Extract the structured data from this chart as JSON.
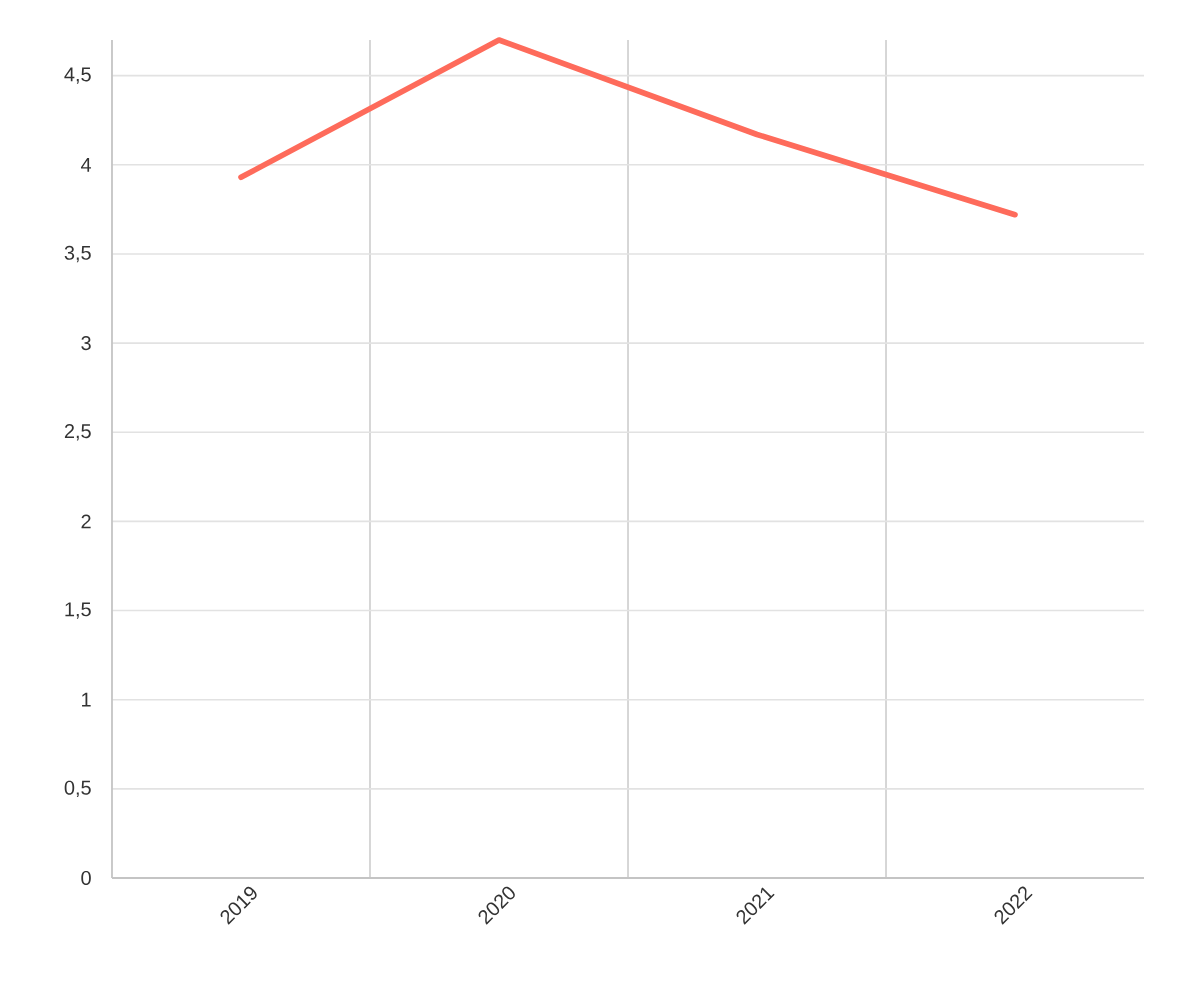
{
  "chart_data": {
    "type": "line",
    "categories": [
      "2019",
      "2020",
      "2021",
      "2022"
    ],
    "values": [
      3.93,
      4.7,
      4.17,
      3.72
    ],
    "color": "#fe6b5b",
    "ylim": [
      0,
      4.7
    ],
    "yticks": [
      0,
      {
        "value": 0.5,
        "label": "0,5"
      },
      1,
      {
        "value": 1.5,
        "label": "1,5"
      },
      2,
      {
        "value": 2.5,
        "label": "2,5"
      },
      3,
      {
        "value": 3.5,
        "label": "3,5"
      },
      4,
      {
        "value": 4.5,
        "label": "4,5"
      }
    ],
    "grid": true,
    "line_style": "solid"
  }
}
